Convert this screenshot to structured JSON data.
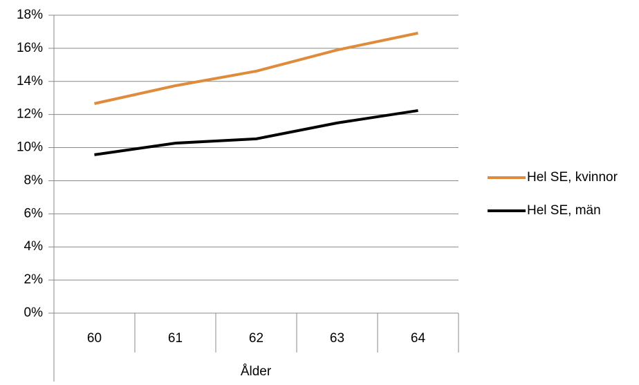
{
  "chart_data": {
    "type": "line",
    "x_label": "Ålder",
    "categories": [
      "60",
      "61",
      "62",
      "63",
      "64"
    ],
    "series": [
      {
        "name": "Hel SE, kvinnor",
        "color": "#e08a3c",
        "values": [
          12.66,
          13.74,
          14.62,
          15.9,
          16.92
        ]
      },
      {
        "name": "Hel SE, män",
        "color": "#000000",
        "values": [
          9.57,
          10.27,
          10.53,
          11.49,
          12.24
        ]
      }
    ],
    "ylim": [
      0,
      18
    ],
    "yticks": [
      {
        "value": 0,
        "label": "0%"
      },
      {
        "value": 2,
        "label": "2%"
      },
      {
        "value": 4,
        "label": "4%"
      },
      {
        "value": 6,
        "label": "6%"
      },
      {
        "value": 8,
        "label": "8%"
      },
      {
        "value": 10,
        "label": "10%"
      },
      {
        "value": 12,
        "label": "12%"
      },
      {
        "value": 14,
        "label": "14%"
      },
      {
        "value": 16,
        "label": "16%"
      },
      {
        "value": 18,
        "label": "18%"
      }
    ],
    "grid": true,
    "legend": "right"
  }
}
